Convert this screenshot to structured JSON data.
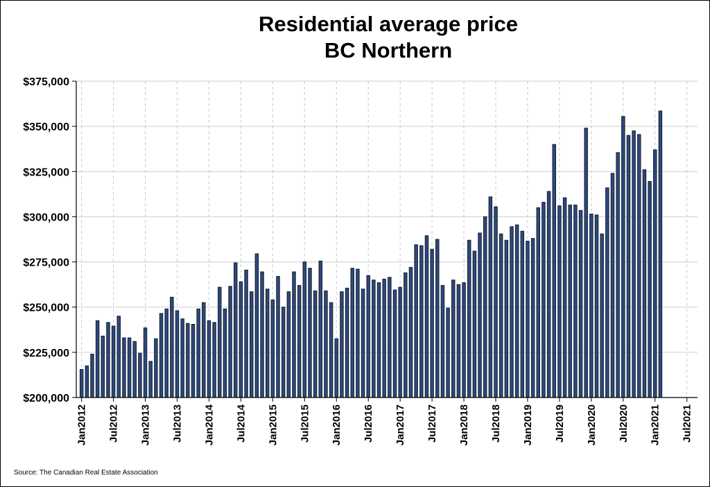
{
  "chart_data": {
    "type": "bar",
    "title_lines": [
      "Residential average price",
      "BC Northern"
    ],
    "source": "Source: The Canadian Real Estate Association",
    "bar_color": "#2f4a7a",
    "bar_edge_color": "#0f1a33",
    "x_start": "2012-01",
    "xlim": [
      "2011-12",
      "2021-09"
    ],
    "x_tick_labels": [
      "Jan2012",
      "Jul2012",
      "Jan2013",
      "Jul2013",
      "Jan2014",
      "Jul2014",
      "Jan2015",
      "Jul2015",
      "Jan2016",
      "Jul2016",
      "Jan2017",
      "Jul2017",
      "Jan2018",
      "Jul2018",
      "Jan2019",
      "Jul2019",
      "Jan2020",
      "Jul2020",
      "Jan2021",
      "Jul2021"
    ],
    "y_tick_labels": [
      "$200,000",
      "$225,000",
      "$250,000",
      "$275,000",
      "$300,000",
      "$325,000",
      "$350,000",
      "$375,000"
    ],
    "y_ticks": [
      200000,
      225000,
      250000,
      275000,
      300000,
      325000,
      350000,
      375000
    ],
    "ylim": [
      200000,
      375000
    ],
    "grid": {
      "horizontal": true,
      "vertical": "dashed"
    },
    "values": [
      215500,
      217500,
      224000,
      242500,
      234000,
      241500,
      239500,
      245000,
      233000,
      233000,
      231000,
      224500,
      238500,
      220000,
      232500,
      246500,
      249000,
      255500,
      248000,
      243500,
      241000,
      240500,
      249000,
      252500,
      242500,
      241500,
      261000,
      249000,
      261500,
      274500,
      264000,
      270500,
      258500,
      279500,
      269500,
      260000,
      254000,
      267000,
      250000,
      258500,
      269500,
      262000,
      275000,
      271500,
      259000,
      275500,
      259000,
      252500,
      232500,
      258500,
      260500,
      271500,
      271000,
      260000,
      267500,
      265000,
      263500,
      265500,
      266500,
      259500,
      261000,
      269000,
      272000,
      284500,
      284000,
      289500,
      282000,
      287500,
      262000,
      249500,
      265000,
      262500,
      263500,
      287000,
      281000,
      291000,
      300000,
      311000,
      305500,
      290500,
      287000,
      294500,
      295500,
      292000,
      286500,
      288000,
      305000,
      308000,
      314000,
      340000,
      306000,
      310500,
      306500,
      306500,
      303500,
      349000,
      301500,
      301000,
      290500,
      316000,
      324000,
      335500,
      355500,
      345000,
      347500,
      345500,
      326000,
      319500,
      337000,
      358500
    ]
  }
}
